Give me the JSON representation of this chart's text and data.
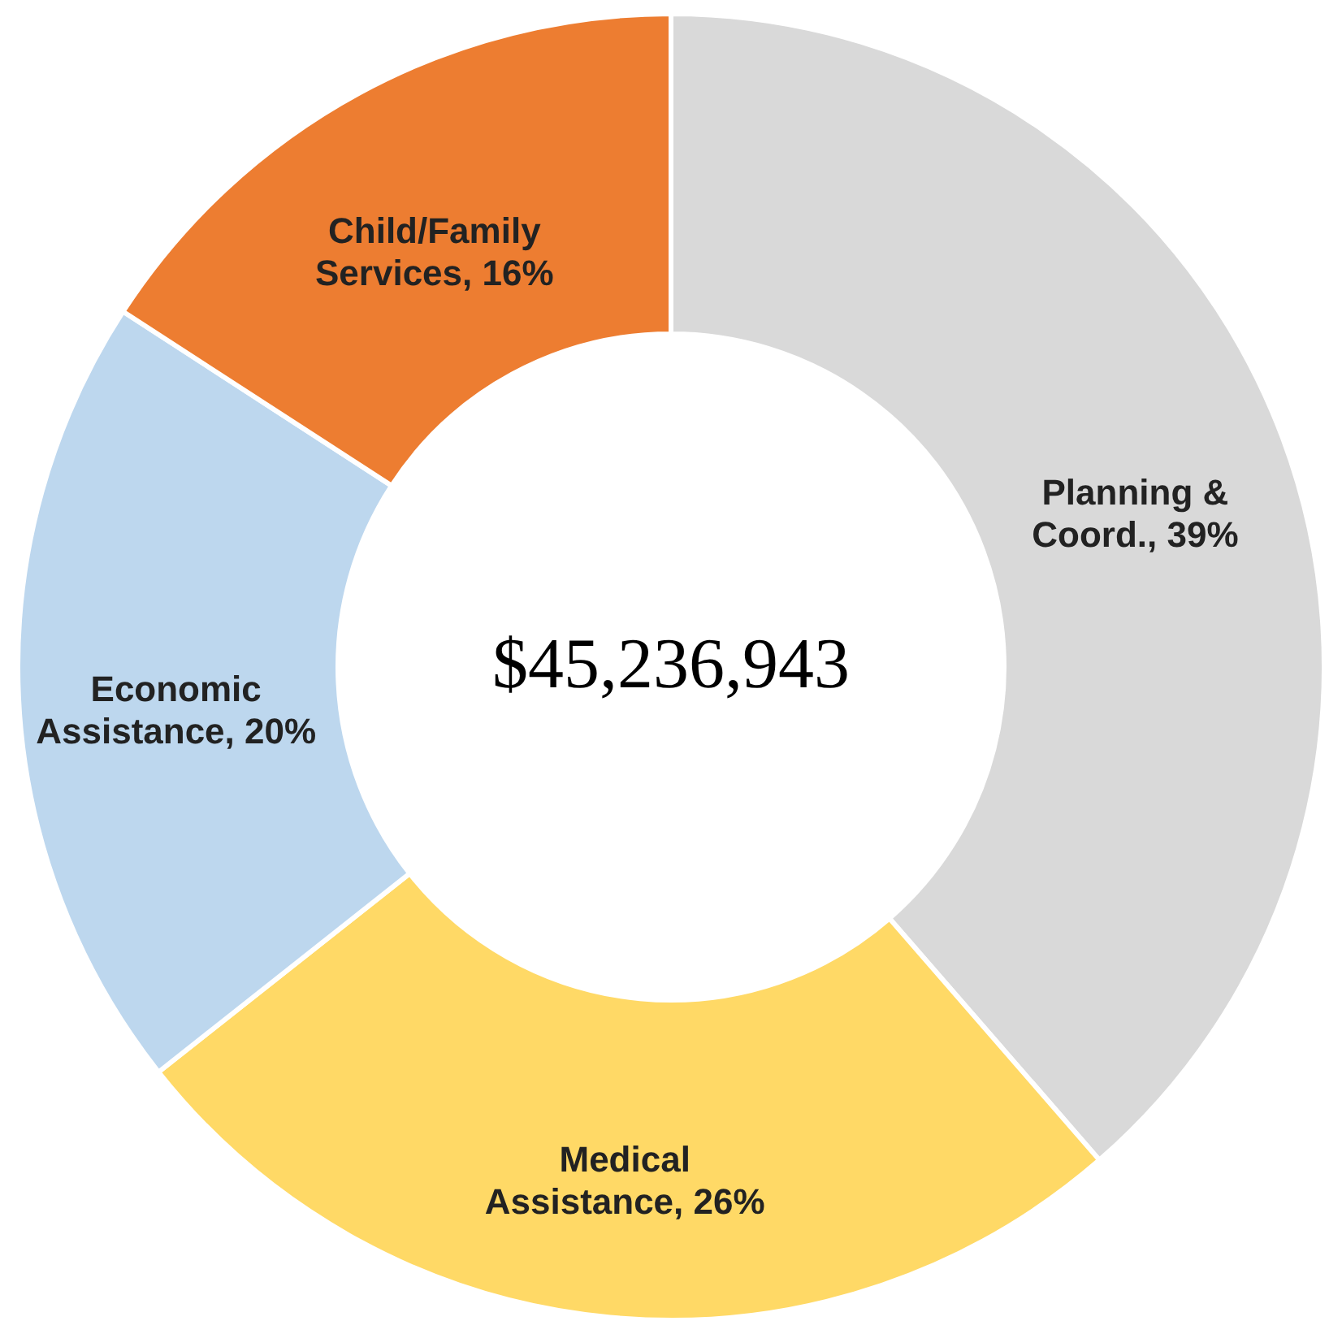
{
  "chart_data": {
    "type": "donut",
    "categories": [
      "Planning & Coord.",
      "Medical Assistance",
      "Economic Assistance",
      "Child/Family Services"
    ],
    "values": [
      39,
      26,
      20,
      16
    ],
    "value_labels": [
      "39%",
      "26%",
      "20%",
      "16%"
    ],
    "colors": [
      "#d9d9d9",
      "#ffd966",
      "#bdd7ee",
      "#ed7d31"
    ],
    "annotations": [
      "$45,236,943"
    ]
  }
}
